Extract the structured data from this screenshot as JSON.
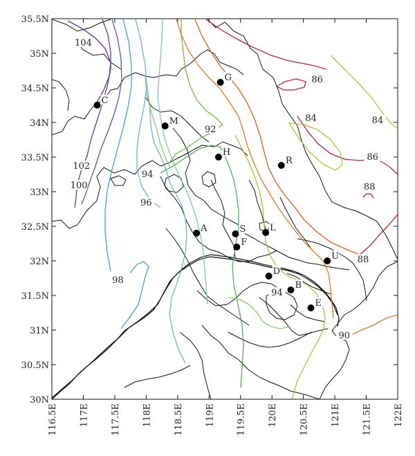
{
  "map": {
    "lat_range": [
      30,
      35.5
    ],
    "lon_range": [
      116.5,
      122
    ],
    "lat_ticks": [
      "35.5N",
      "35N",
      "34.5N",
      "34N",
      "33.5N",
      "33N",
      "32.5N",
      "32N",
      "31.5N",
      "31N",
      "30.5N",
      "30N"
    ],
    "lon_ticks": [
      "116.5E",
      "117E",
      "117.5E",
      "118E",
      "118.5E",
      "119E",
      "119.5E",
      "120E",
      "120.5E",
      "121E",
      "121.5E",
      "122E"
    ],
    "contour_labels": [
      {
        "text": "104",
        "lon": 117.0,
        "lat": 35.13
      },
      {
        "text": "102",
        "lon": 116.97,
        "lat": 33.35
      },
      {
        "text": "100",
        "lon": 116.93,
        "lat": 33.07
      },
      {
        "text": "98",
        "lon": 117.55,
        "lat": 31.7
      },
      {
        "text": "96",
        "lon": 118.0,
        "lat": 32.82
      },
      {
        "text": "94",
        "lon": 118.02,
        "lat": 33.23
      },
      {
        "text": "92",
        "lon": 119.02,
        "lat": 33.88
      },
      {
        "text": "94",
        "lon": 120.08,
        "lat": 31.52
      },
      {
        "text": "90",
        "lon": 121.15,
        "lat": 30.9
      },
      {
        "text": "88",
        "lon": 121.45,
        "lat": 32.0
      },
      {
        "text": "86",
        "lon": 120.72,
        "lat": 34.6
      },
      {
        "text": "84",
        "lon": 120.62,
        "lat": 34.04
      },
      {
        "text": "84",
        "lon": 121.68,
        "lat": 34.01
      },
      {
        "text": "86",
        "lon": 121.6,
        "lat": 33.48
      },
      {
        "text": "88",
        "lon": 121.55,
        "lat": 33.05
      }
    ],
    "sites": [
      {
        "label": "G",
        "lon": 119.18,
        "lat": 34.58
      },
      {
        "label": "C",
        "lon": 117.22,
        "lat": 34.25
      },
      {
        "label": "M",
        "lon": 118.3,
        "lat": 33.95
      },
      {
        "label": "H",
        "lon": 119.15,
        "lat": 33.5
      },
      {
        "label": "R",
        "lon": 120.15,
        "lat": 33.38
      },
      {
        "label": "A",
        "lon": 118.8,
        "lat": 32.4
      },
      {
        "label": "S",
        "lon": 119.42,
        "lat": 32.39
      },
      {
        "label": "L",
        "lon": 119.9,
        "lat": 32.41
      },
      {
        "label": "F",
        "lon": 119.44,
        "lat": 32.2
      },
      {
        "label": "U",
        "lon": 120.88,
        "lat": 32.0
      },
      {
        "label": "D",
        "lon": 119.95,
        "lat": 31.78
      },
      {
        "label": "B",
        "lon": 120.3,
        "lat": 31.58
      },
      {
        "label": "E",
        "lon": 120.62,
        "lat": 31.32
      }
    ],
    "contour_colors": {
      "104": "#6a2e8e",
      "102": "#5a3e9e",
      "100": "#4a5aae",
      "98": "#4a9ad8",
      "97": "#6ab0e0",
      "96": "#6ab4d0",
      "95": "#7cc4c0",
      "94": "#8cc870",
      "93": "#5aaa5a",
      "92": "#78b83a",
      "91": "#a0c83c",
      "90": "#e07a20",
      "89": "#e05a1a",
      "88": "#c81e1e",
      "86": "#c21a5a",
      "84": "#a8c83a"
    }
  }
}
